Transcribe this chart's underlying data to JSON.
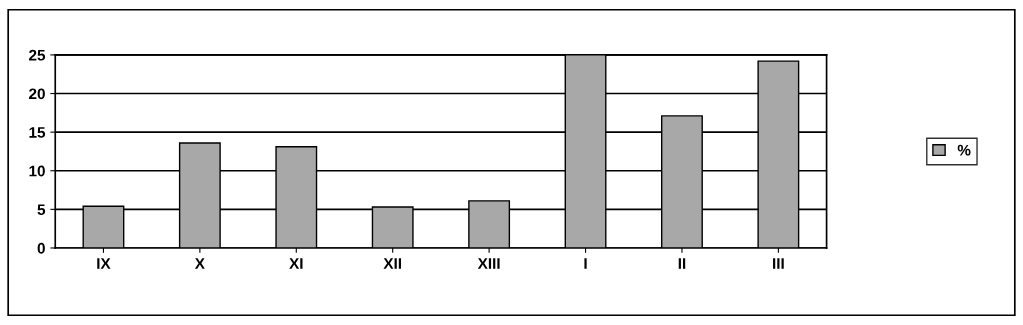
{
  "chart_data": {
    "type": "bar",
    "categories": [
      "IX",
      "X",
      "XI",
      "XII",
      "XIII",
      "I",
      "II",
      "III"
    ],
    "series": [
      {
        "name": "%",
        "color": "#a8a8a8",
        "values": [
          5.4,
          13.6,
          13.1,
          5.3,
          6.1,
          25,
          17.1,
          24.2
        ]
      }
    ],
    "ylim": [
      0,
      25
    ],
    "yticks": [
      0,
      5,
      10,
      15,
      20,
      25
    ],
    "grid": "y",
    "legend": "right"
  }
}
